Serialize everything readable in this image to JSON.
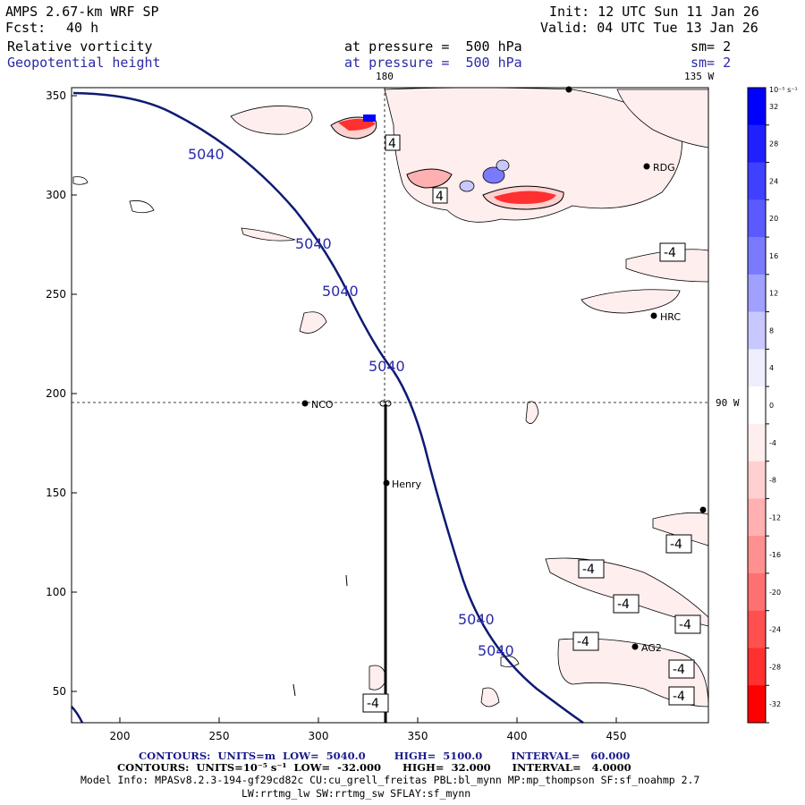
{
  "header": {
    "model": "AMPS 2.67-km WRF SP",
    "forecast_label": "Fcst:",
    "forecast_value": "40 h",
    "init": "Init: 12 UTC Sun 11 Jan 26",
    "valid": "Valid: 04 UTC Tue 13 Jan 26",
    "field1_name": "Relative vorticity",
    "field1_level": "at pressure =  500 hPa",
    "field1_smooth": "sm= 2",
    "field2_name": "Geopotential height",
    "field2_level": "at pressure =  500 hPa",
    "field2_smooth": "sm= 2"
  },
  "meridians": {
    "lon180": "180",
    "lon135w": "135 W",
    "lon90w": "90 W"
  },
  "axes": {
    "x_ticks": [
      "200",
      "250",
      "300",
      "350",
      "400",
      "450"
    ],
    "y_ticks": [
      "350",
      "300",
      "250",
      "200",
      "150",
      "100",
      "50"
    ]
  },
  "stations": {
    "rdg": "RDG",
    "hrc": "HRC",
    "nco": "NCO",
    "henry": "Henry",
    "ag2": "AG2"
  },
  "contour_labels": {
    "height": "5040",
    "vort_neg": "-4",
    "vort_pos": "4"
  },
  "colorbar": {
    "unit": "10⁻⁵ s⁻¹",
    "ticks": [
      "32",
      "28",
      "24",
      "20",
      "16",
      "12",
      "8",
      "4",
      "0",
      "-4",
      "-8",
      "-12",
      "-16",
      "-20",
      "-24",
      "-28",
      "-32"
    ],
    "colors": [
      "#0000ff",
      "#2020ff",
      "#4040ff",
      "#5a5aff",
      "#7a7aff",
      "#a0a0ff",
      "#c8c8ff",
      "#eeeeff",
      "#ffffff",
      "#ffeeee",
      "#ffd0d0",
      "#ffb0b0",
      "#ff9090",
      "#ff7070",
      "#ff5050",
      "#ff3030",
      "#ff0000"
    ]
  },
  "footer": {
    "line1": "CONTOURS:  UNITS=m  LOW=  5040.0        HIGH=  5100.0        INTERVAL=   60.000",
    "line2": "CONTOURS:  UNITS=10⁻⁵ s⁻¹  LOW=  -32.000      HIGH=  32.000      INTERVAL=   4.0000",
    "line3": "Model Info: MPASv8.2.3-194-gf29cd82c CU:cu_grell_freitas PBL:bl_mynn MP:mp_thompson SF:sf_noahmp 2.7",
    "line4": "LW:rrtmg_lw SW:rrtmg_sw SFLAY:sf_mynn"
  }
}
